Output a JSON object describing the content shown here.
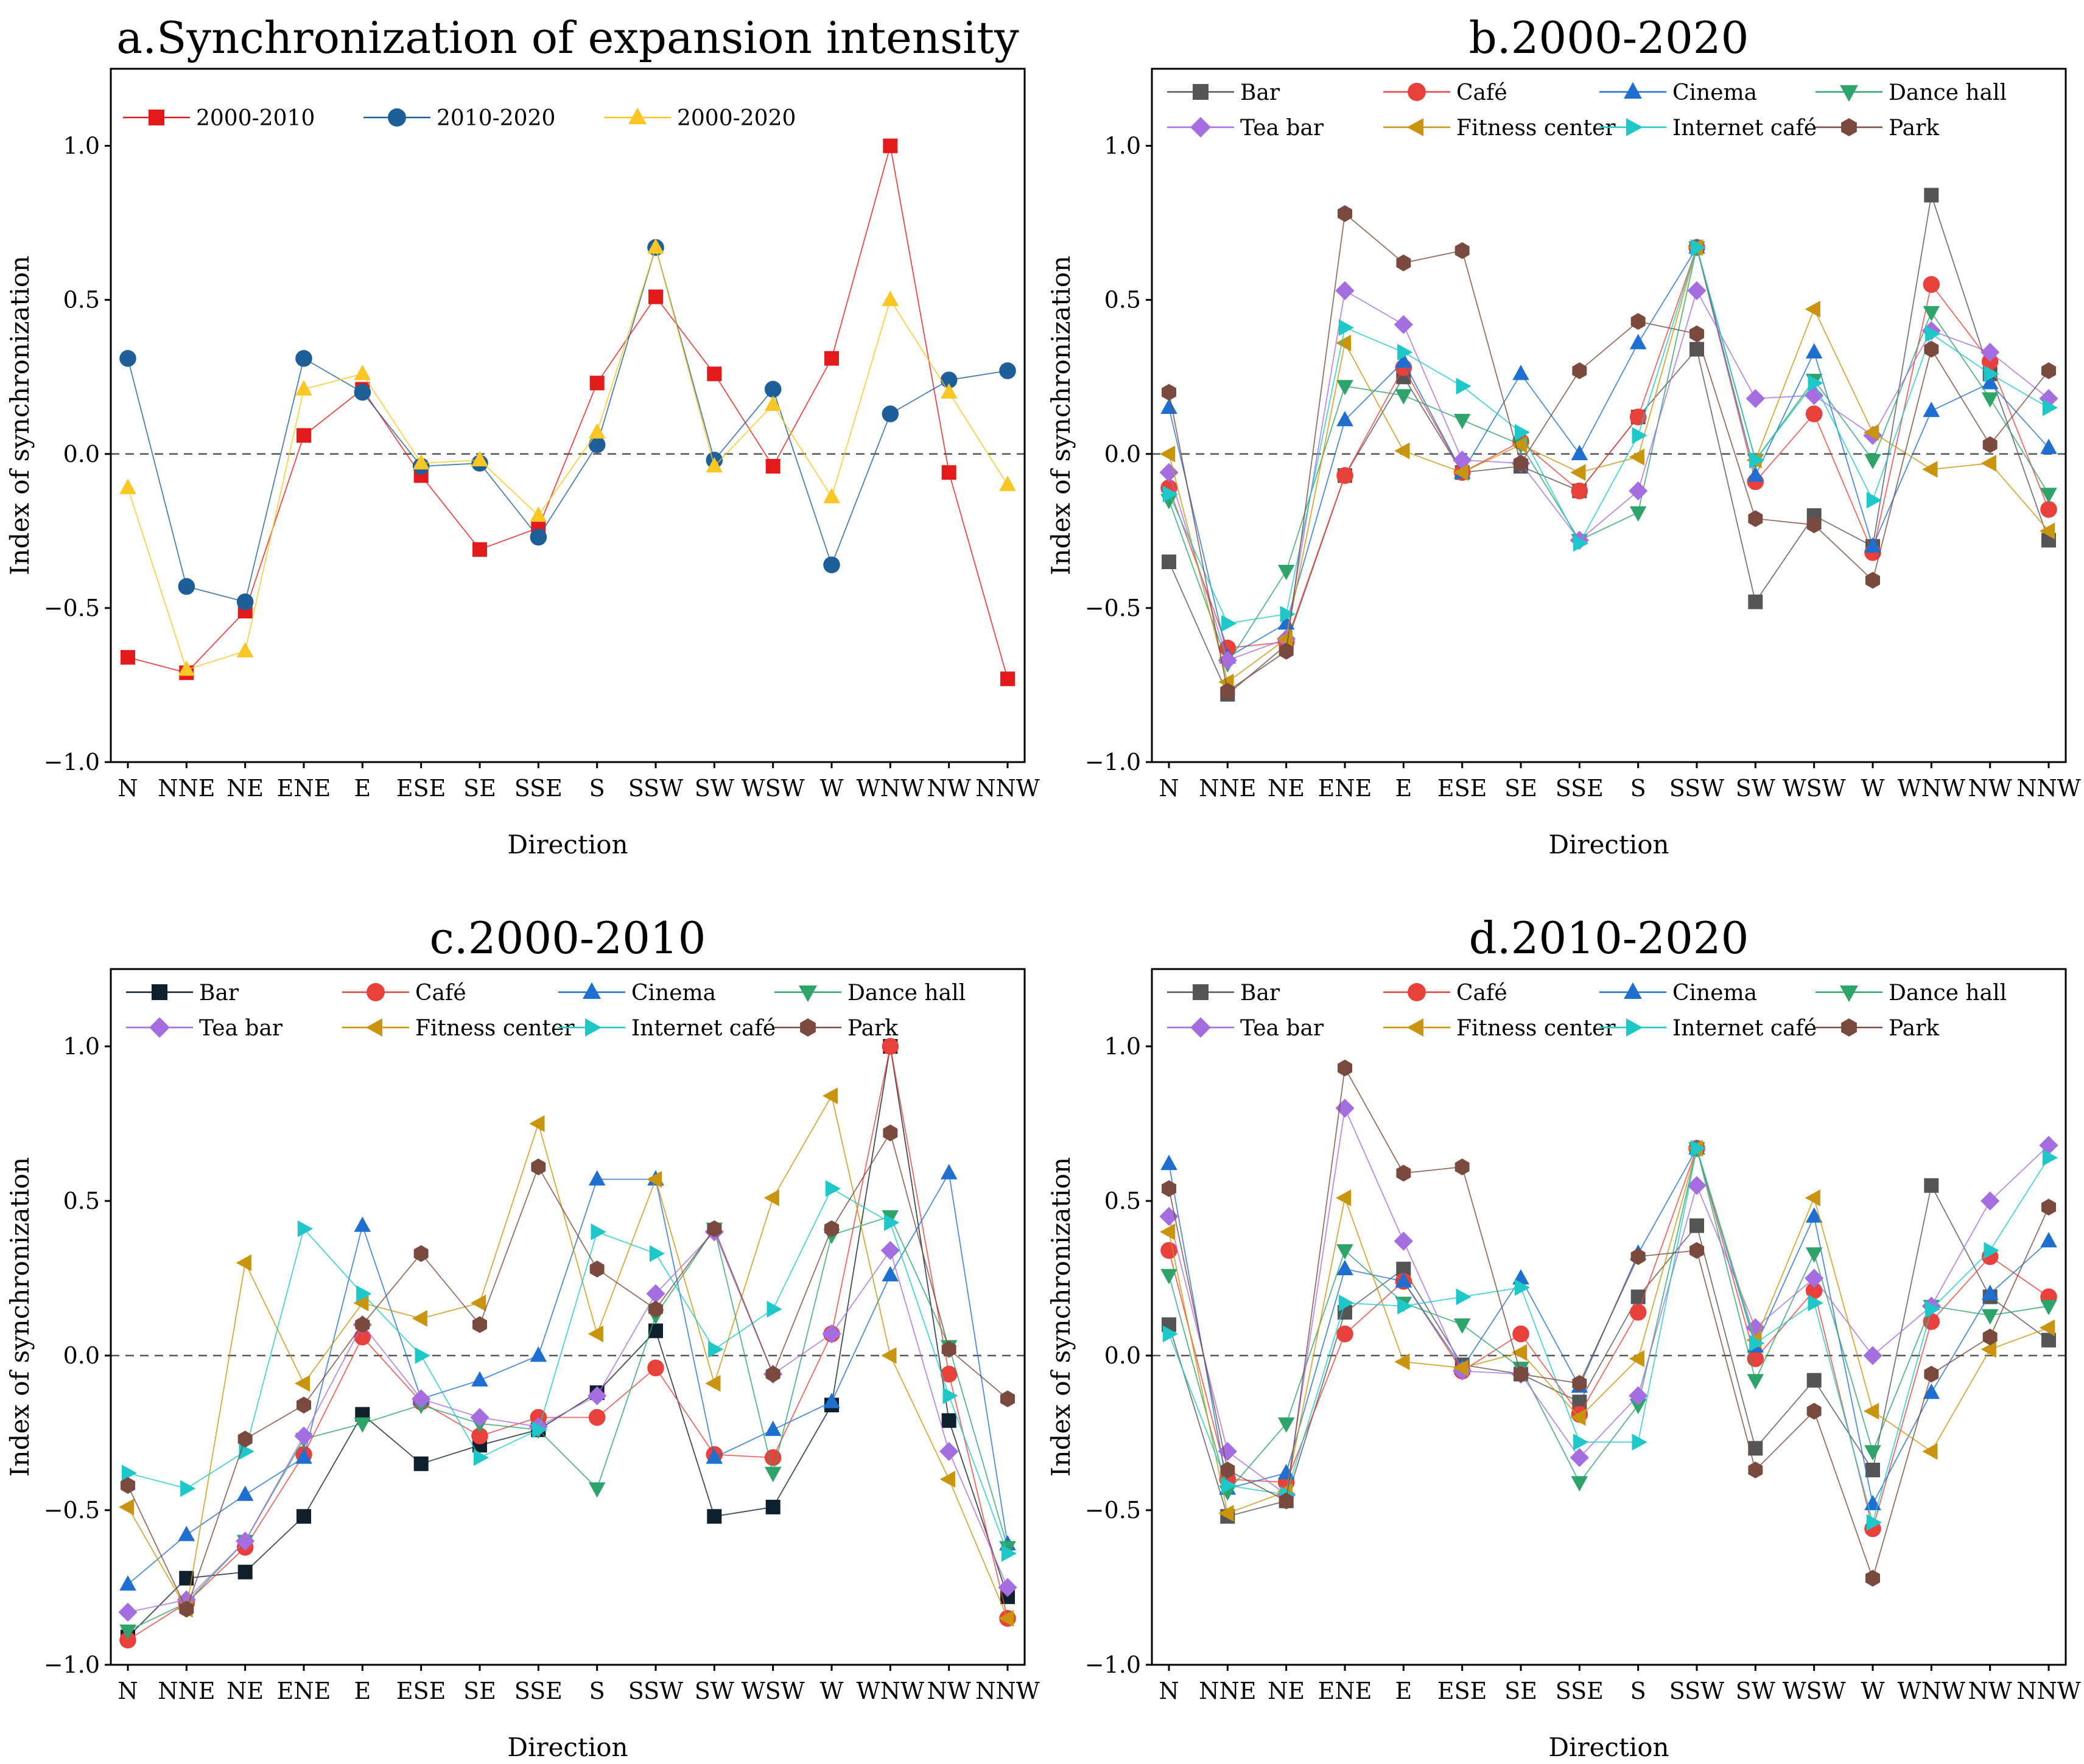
{
  "figure": {
    "description_free": true
  },
  "chart_data": [
    {
      "type": "line",
      "title": "a.Synchronization of expansion intensity",
      "xlabel": "Direction",
      "ylabel": "Index of synchronization",
      "ylim": [
        -1.0,
        1.25
      ],
      "yticks": [
        -1.0,
        -0.5,
        0.0,
        0.5,
        1.0
      ],
      "ytick_labels": [
        "−1.0",
        "−0.5",
        "0.0",
        "0.5",
        "1.0"
      ],
      "reference_line": 0,
      "legend_position": "top-left",
      "legend_columns": 3,
      "categories": [
        "N",
        "NNE",
        "NE",
        "ENE",
        "E",
        "ESE",
        "SE",
        "SSE",
        "S",
        "SSW",
        "SW",
        "WSW",
        "W",
        "WNW",
        "NW",
        "NNW"
      ],
      "series": [
        {
          "name": "2000-2010",
          "color": "#e31a1c",
          "marker": "square",
          "values": [
            -0.66,
            -0.71,
            -0.51,
            0.06,
            0.21,
            -0.07,
            -0.31,
            -0.24,
            0.23,
            0.51,
            0.26,
            -0.04,
            0.31,
            1.0,
            -0.06,
            -0.73
          ]
        },
        {
          "name": "2010-2020",
          "color": "#1f5f99",
          "marker": "circle",
          "values": [
            0.31,
            -0.43,
            -0.48,
            0.31,
            0.2,
            -0.04,
            -0.03,
            -0.27,
            0.03,
            0.67,
            -0.02,
            0.21,
            -0.36,
            0.13,
            0.24,
            0.27
          ]
        },
        {
          "name": "2000-2020",
          "color": "#f9c623",
          "marker": "triangle",
          "values": [
            -0.11,
            -0.7,
            -0.64,
            0.21,
            0.26,
            -0.03,
            -0.02,
            -0.2,
            0.07,
            0.67,
            -0.04,
            0.16,
            -0.14,
            0.5,
            0.2,
            -0.1
          ]
        }
      ]
    },
    {
      "type": "line",
      "title": "b.2000-2020",
      "xlabel": "Direction",
      "ylabel": "Index of synchronization",
      "ylim": [
        -1.0,
        1.25
      ],
      "yticks": [
        -1.0,
        -0.5,
        0.0,
        0.5,
        1.0
      ],
      "ytick_labels": [
        "−1.0",
        "−0.5",
        "0.0",
        "0.5",
        "1.0"
      ],
      "reference_line": 0,
      "legend_position": "top",
      "legend_columns": 4,
      "categories": [
        "N",
        "NNE",
        "NE",
        "ENE",
        "E",
        "ESE",
        "SE",
        "SSE",
        "S",
        "SSW",
        "SW",
        "WSW",
        "W",
        "WNW",
        "NW",
        "NNW"
      ],
      "series": [
        {
          "name": "Bar",
          "color": "#555555",
          "marker": "square",
          "values": [
            -0.35,
            -0.78,
            -0.62,
            -0.07,
            0.25,
            -0.06,
            -0.04,
            -0.12,
            0.12,
            0.34,
            -0.48,
            -0.2,
            -0.3,
            0.84,
            0.26,
            -0.28
          ]
        },
        {
          "name": "Café",
          "color": "#e8413c",
          "marker": "circle",
          "values": [
            -0.11,
            -0.63,
            -0.61,
            -0.07,
            0.28,
            -0.06,
            0.04,
            -0.12,
            0.12,
            0.67,
            -0.09,
            0.13,
            -0.32,
            0.55,
            0.3,
            -0.18
          ]
        },
        {
          "name": "Cinema",
          "color": "#1f6fd1",
          "marker": "triangle",
          "values": [
            0.15,
            -0.66,
            -0.55,
            0.11,
            0.3,
            -0.06,
            0.26,
            0.0,
            0.36,
            0.67,
            -0.07,
            0.33,
            -0.3,
            0.14,
            0.23,
            0.02
          ]
        },
        {
          "name": "Dance hall",
          "color": "#2ea36a",
          "marker": "triangle-down",
          "values": [
            -0.15,
            -0.68,
            -0.38,
            0.22,
            0.19,
            0.11,
            0.03,
            -0.28,
            -0.19,
            0.67,
            -0.02,
            0.24,
            -0.02,
            0.46,
            0.18,
            -0.13
          ]
        },
        {
          "name": "Tea bar",
          "color": "#a56ee0",
          "marker": "diamond",
          "values": [
            -0.06,
            -0.67,
            -0.6,
            0.53,
            0.42,
            -0.02,
            -0.03,
            -0.28,
            -0.12,
            0.53,
            0.18,
            0.19,
            0.06,
            0.4,
            0.33,
            0.18
          ]
        },
        {
          "name": "Fitness center",
          "color": "#c9950e",
          "marker": "triangle-left",
          "values": [
            0.0,
            -0.74,
            -0.6,
            0.36,
            0.01,
            -0.06,
            0.03,
            -0.06,
            -0.01,
            0.67,
            -0.02,
            0.47,
            0.07,
            -0.05,
            -0.03,
            -0.25
          ]
        },
        {
          "name": "Internet café",
          "color": "#1fc8c8",
          "marker": "triangle-right",
          "values": [
            -0.13,
            -0.55,
            -0.52,
            0.41,
            0.33,
            0.22,
            0.07,
            -0.29,
            0.06,
            0.67,
            -0.02,
            0.23,
            -0.15,
            0.39,
            0.26,
            0.15
          ]
        },
        {
          "name": "Park",
          "color": "#7a4a3e",
          "marker": "hexagon",
          "values": [
            0.2,
            -0.77,
            -0.64,
            0.78,
            0.62,
            0.66,
            -0.03,
            0.27,
            0.43,
            0.39,
            -0.21,
            -0.23,
            -0.41,
            0.34,
            0.03,
            0.27
          ]
        }
      ]
    },
    {
      "type": "line",
      "title": "c.2000-2010",
      "xlabel": "Direction",
      "ylabel": "Index of synchronization",
      "ylim": [
        -1.0,
        1.25
      ],
      "yticks": [
        -1.0,
        -0.5,
        0.0,
        0.5,
        1.0
      ],
      "ytick_labels": [
        "−1.0",
        "−0.5",
        "0.0",
        "0.5",
        "1.0"
      ],
      "reference_line": 0,
      "legend_position": "top",
      "legend_columns": 4,
      "categories": [
        "N",
        "NNE",
        "NE",
        "ENE",
        "E",
        "ESE",
        "SE",
        "SSE",
        "S",
        "SSW",
        "SW",
        "WSW",
        "W",
        "WNW",
        "NW",
        "NNW"
      ],
      "series": [
        {
          "name": "Bar",
          "color": "#0f1f2b",
          "marker": "square",
          "values": [
            -0.91,
            -0.72,
            -0.7,
            -0.52,
            -0.19,
            -0.35,
            -0.29,
            -0.24,
            -0.12,
            0.08,
            -0.52,
            -0.49,
            -0.16,
            1.0,
            -0.21,
            -0.78
          ]
        },
        {
          "name": "Café",
          "color": "#e8413c",
          "marker": "circle",
          "values": [
            -0.92,
            -0.8,
            -0.62,
            -0.32,
            0.06,
            -0.15,
            -0.26,
            -0.2,
            -0.2,
            -0.04,
            -0.32,
            -0.33,
            0.07,
            1.0,
            -0.06,
            -0.85
          ]
        },
        {
          "name": "Cinema",
          "color": "#1f6fd1",
          "marker": "triangle",
          "values": [
            -0.74,
            -0.58,
            -0.45,
            -0.33,
            0.42,
            -0.14,
            -0.08,
            0.0,
            0.57,
            0.57,
            -0.33,
            -0.24,
            -0.15,
            0.26,
            0.59,
            -0.61
          ]
        },
        {
          "name": "Dance hall",
          "color": "#2ea36a",
          "marker": "triangle-down",
          "values": [
            -0.89,
            -0.8,
            -0.6,
            -0.27,
            -0.22,
            -0.16,
            -0.22,
            -0.24,
            -0.43,
            0.13,
            0.41,
            -0.38,
            0.39,
            0.45,
            0.03,
            -0.62
          ]
        },
        {
          "name": "Tea bar",
          "color": "#a56ee0",
          "marker": "diamond",
          "values": [
            -0.83,
            -0.79,
            -0.6,
            -0.26,
            0.1,
            -0.14,
            -0.2,
            -0.23,
            -0.13,
            0.2,
            0.4,
            -0.06,
            0.07,
            0.34,
            -0.31,
            -0.75
          ]
        },
        {
          "name": "Fitness center",
          "color": "#c9950e",
          "marker": "triangle-left",
          "values": [
            -0.49,
            -0.82,
            0.3,
            -0.09,
            0.17,
            0.12,
            0.17,
            0.75,
            0.07,
            0.57,
            -0.09,
            0.51,
            0.84,
            0.0,
            -0.4,
            -0.85
          ]
        },
        {
          "name": "Internet café",
          "color": "#1fc8c8",
          "marker": "triangle-right",
          "values": [
            -0.38,
            -0.43,
            -0.31,
            0.41,
            0.2,
            0.0,
            -0.33,
            -0.24,
            0.4,
            0.33,
            0.02,
            0.15,
            0.54,
            0.43,
            -0.13,
            -0.64
          ]
        },
        {
          "name": "Park",
          "color": "#7a4a3e",
          "marker": "hexagon",
          "values": [
            -0.42,
            -0.82,
            -0.27,
            -0.16,
            0.1,
            0.33,
            0.1,
            0.61,
            0.28,
            0.15,
            0.41,
            -0.06,
            0.41,
            0.72,
            0.02,
            -0.14
          ]
        }
      ]
    },
    {
      "type": "line",
      "title": "d.2010-2020",
      "xlabel": "Direction",
      "ylabel": "Index of synchronization",
      "ylim": [
        -1.0,
        1.25
      ],
      "yticks": [
        -1.0,
        -0.5,
        0.0,
        0.5,
        1.0
      ],
      "ytick_labels": [
        "−1.0",
        "−0.5",
        "0.0",
        "0.5",
        "1.0"
      ],
      "reference_line": 0,
      "legend_position": "top",
      "legend_columns": 4,
      "categories": [
        "N",
        "NNE",
        "NE",
        "ENE",
        "E",
        "ESE",
        "SE",
        "SSE",
        "S",
        "SSW",
        "SW",
        "WSW",
        "W",
        "WNW",
        "NW",
        "NNW"
      ],
      "series": [
        {
          "name": "Bar",
          "color": "#555555",
          "marker": "square",
          "values": [
            0.1,
            -0.52,
            -0.47,
            0.14,
            0.28,
            -0.03,
            -0.06,
            -0.15,
            0.19,
            0.42,
            -0.3,
            -0.08,
            -0.37,
            0.55,
            0.19,
            0.05
          ]
        },
        {
          "name": "Café",
          "color": "#e8413c",
          "marker": "circle",
          "values": [
            0.34,
            -0.4,
            -0.41,
            0.07,
            0.24,
            -0.05,
            0.07,
            -0.19,
            0.14,
            0.67,
            -0.01,
            0.21,
            -0.56,
            0.11,
            0.32,
            0.19
          ]
        },
        {
          "name": "Cinema",
          "color": "#1f6fd1",
          "marker": "triangle",
          "values": [
            0.62,
            -0.43,
            -0.38,
            0.28,
            0.24,
            -0.04,
            0.25,
            -0.1,
            0.33,
            0.67,
            0.03,
            0.45,
            -0.48,
            -0.12,
            0.2,
            0.37
          ]
        },
        {
          "name": "Dance hall",
          "color": "#2ea36a",
          "marker": "triangle-down",
          "values": [
            0.26,
            -0.44,
            -0.22,
            0.34,
            0.17,
            0.1,
            -0.04,
            -0.41,
            -0.16,
            0.67,
            -0.08,
            0.33,
            -0.31,
            0.16,
            0.13,
            0.16
          ]
        },
        {
          "name": "Tea bar",
          "color": "#a56ee0",
          "marker": "diamond",
          "values": [
            0.45,
            -0.31,
            -0.45,
            0.8,
            0.37,
            -0.05,
            -0.06,
            -0.33,
            -0.13,
            0.55,
            0.09,
            0.25,
            0.0,
            0.16,
            0.5,
            0.68
          ]
        },
        {
          "name": "Fitness center",
          "color": "#c9950e",
          "marker": "triangle-left",
          "values": [
            0.4,
            -0.51,
            -0.44,
            0.51,
            -0.02,
            -0.04,
            0.01,
            -0.2,
            -0.01,
            0.67,
            0.05,
            0.51,
            -0.18,
            -0.31,
            0.02,
            0.09
          ]
        },
        {
          "name": "Internet café",
          "color": "#1fc8c8",
          "marker": "triangle-right",
          "values": [
            0.07,
            -0.42,
            -0.45,
            0.17,
            0.16,
            0.19,
            0.22,
            -0.28,
            -0.28,
            0.67,
            0.04,
            0.17,
            -0.54,
            0.15,
            0.34,
            0.64
          ]
        },
        {
          "name": "Park",
          "color": "#7a4a3e",
          "marker": "hexagon",
          "values": [
            0.54,
            -0.37,
            -0.47,
            0.93,
            0.59,
            0.61,
            -0.06,
            -0.09,
            0.32,
            0.34,
            -0.37,
            -0.18,
            -0.72,
            -0.06,
            0.06,
            0.48
          ]
        }
      ]
    }
  ]
}
